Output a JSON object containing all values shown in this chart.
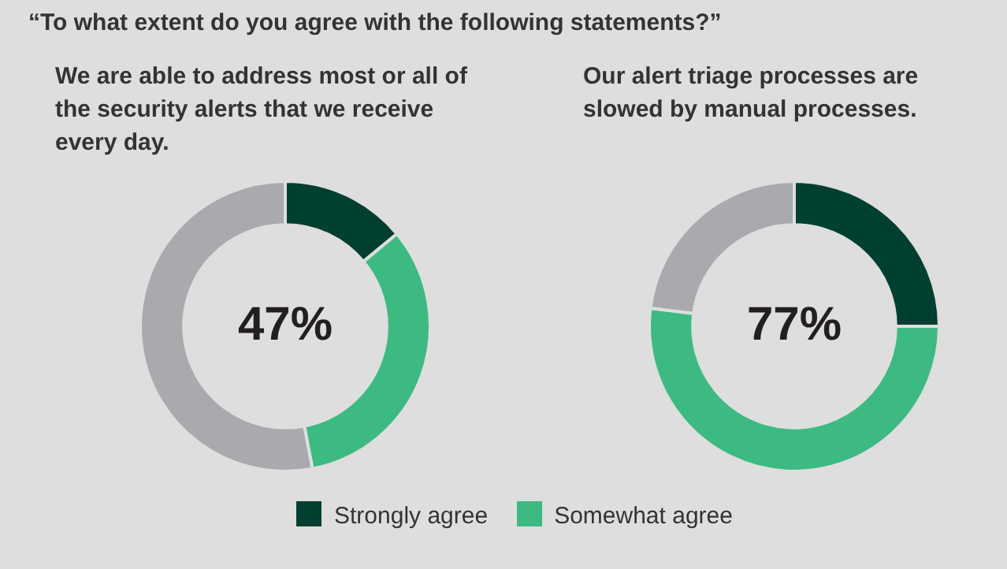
{
  "chart_data": [
    {
      "type": "donut",
      "title": "“To what extent do you agree with the following statements?”",
      "subtitle": "We are able to address most or all of the security alerts that we receive every day.",
      "categories": [
        "Strongly agree",
        "Somewhat agree",
        null
      ],
      "values": [
        14,
        33,
        53
      ],
      "colors": [
        "#004030",
        "#3dba82",
        "#a9aaad"
      ],
      "annotations": [
        "47%"
      ],
      "legend": "bottom"
    },
    {
      "type": "donut",
      "subtitle": "Our alert triage processes are slowed by manual processes.",
      "categories": [
        null,
        null,
        null
      ],
      "values": [
        25,
        52,
        23
      ],
      "colors": [
        "#004030",
        "#3dba82",
        "#a9aaad"
      ],
      "annotations": [
        "77%"
      ]
    }
  ]
}
